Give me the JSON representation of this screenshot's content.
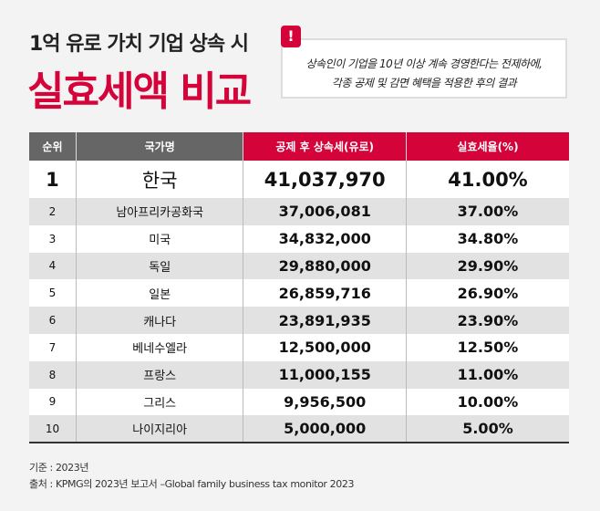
{
  "title_line1": "1억 유로 가치 기업 상속 시",
  "title_line2": "실효세액 비교",
  "note": {
    "icon": "exclamation-icon",
    "mark": "!",
    "line1": "상속인이 기업을 10년 이상 계속 경영한다는 전제하에,",
    "line2": "각종 공제 및 감면 혜택을 적용한 후의 결과"
  },
  "table": {
    "headers": [
      "순위",
      "국가명",
      "공제 후 상속세(유로)",
      "실효세율(%)"
    ],
    "rows": [
      [
        "1",
        "한국",
        "41,037,970",
        "41.00%"
      ],
      [
        "2",
        "남아프리카공화국",
        "37,006,081",
        "37.00%"
      ],
      [
        "3",
        "미국",
        "34,832,000",
        "34.80%"
      ],
      [
        "4",
        "독일",
        "29,880,000",
        "29.90%"
      ],
      [
        "5",
        "일본",
        "26,859,716",
        "26.90%"
      ],
      [
        "6",
        "캐나다",
        "23,891,935",
        "23.90%"
      ],
      [
        "7",
        "베네수엘라",
        "12,500,000",
        "12.50%"
      ],
      [
        "8",
        "프랑스",
        "11,000,155",
        "11.00%"
      ],
      [
        "9",
        "그리스",
        "9,956,500",
        "10.00%"
      ],
      [
        "10",
        "나이지리아",
        "5,000,000",
        "5.00%"
      ]
    ]
  },
  "footer": {
    "basis": "기준 : 2023년",
    "source": "출처 : KPMG의 2023년 보고서 –Global family business tax monitor 2023"
  },
  "colors": {
    "accent": "#d4043a",
    "header_gray": "#666666"
  }
}
